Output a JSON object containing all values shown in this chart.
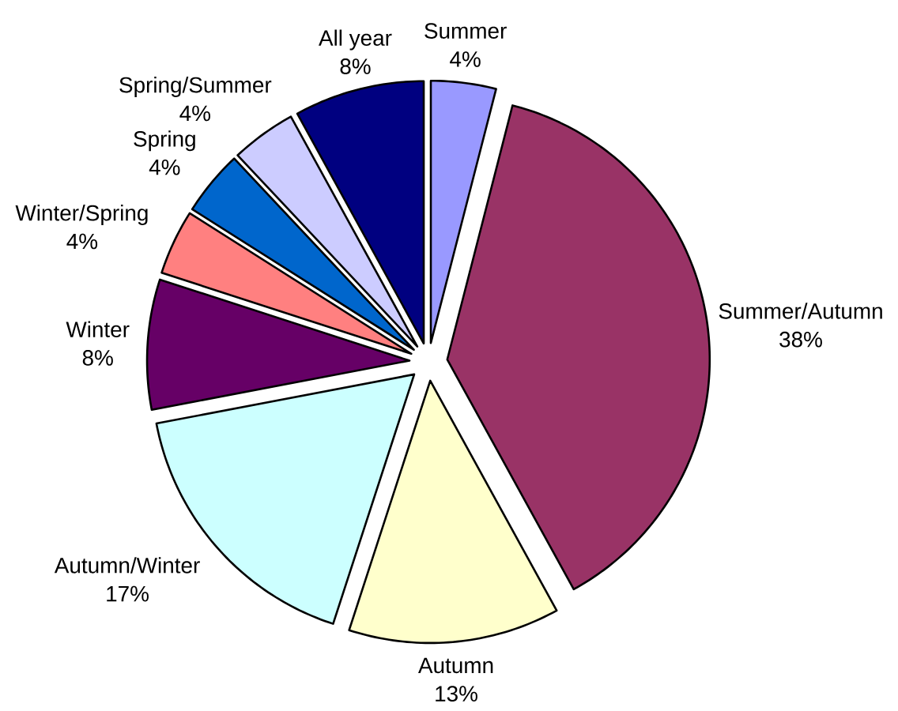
{
  "chart_data": {
    "type": "pie",
    "categories": [
      "Summer",
      "Summer/Autumn",
      "Autumn",
      "Autumn/Winter",
      "Winter",
      "Winter/Spring",
      "Spring",
      "Spring/Summer",
      "All year"
    ],
    "values": [
      4,
      38,
      13,
      17,
      8,
      4,
      4,
      4,
      8
    ],
    "colors": [
      "#9999ff",
      "#993366",
      "#ffffcc",
      "#ccffff",
      "#660066",
      "#ff8080",
      "#0066cc",
      "#ccccff",
      "#000080"
    ],
    "value_labels": [
      "4%",
      "38%",
      "13%",
      "17%",
      "8%",
      "4%",
      "4%",
      "4%",
      "8%"
    ]
  }
}
